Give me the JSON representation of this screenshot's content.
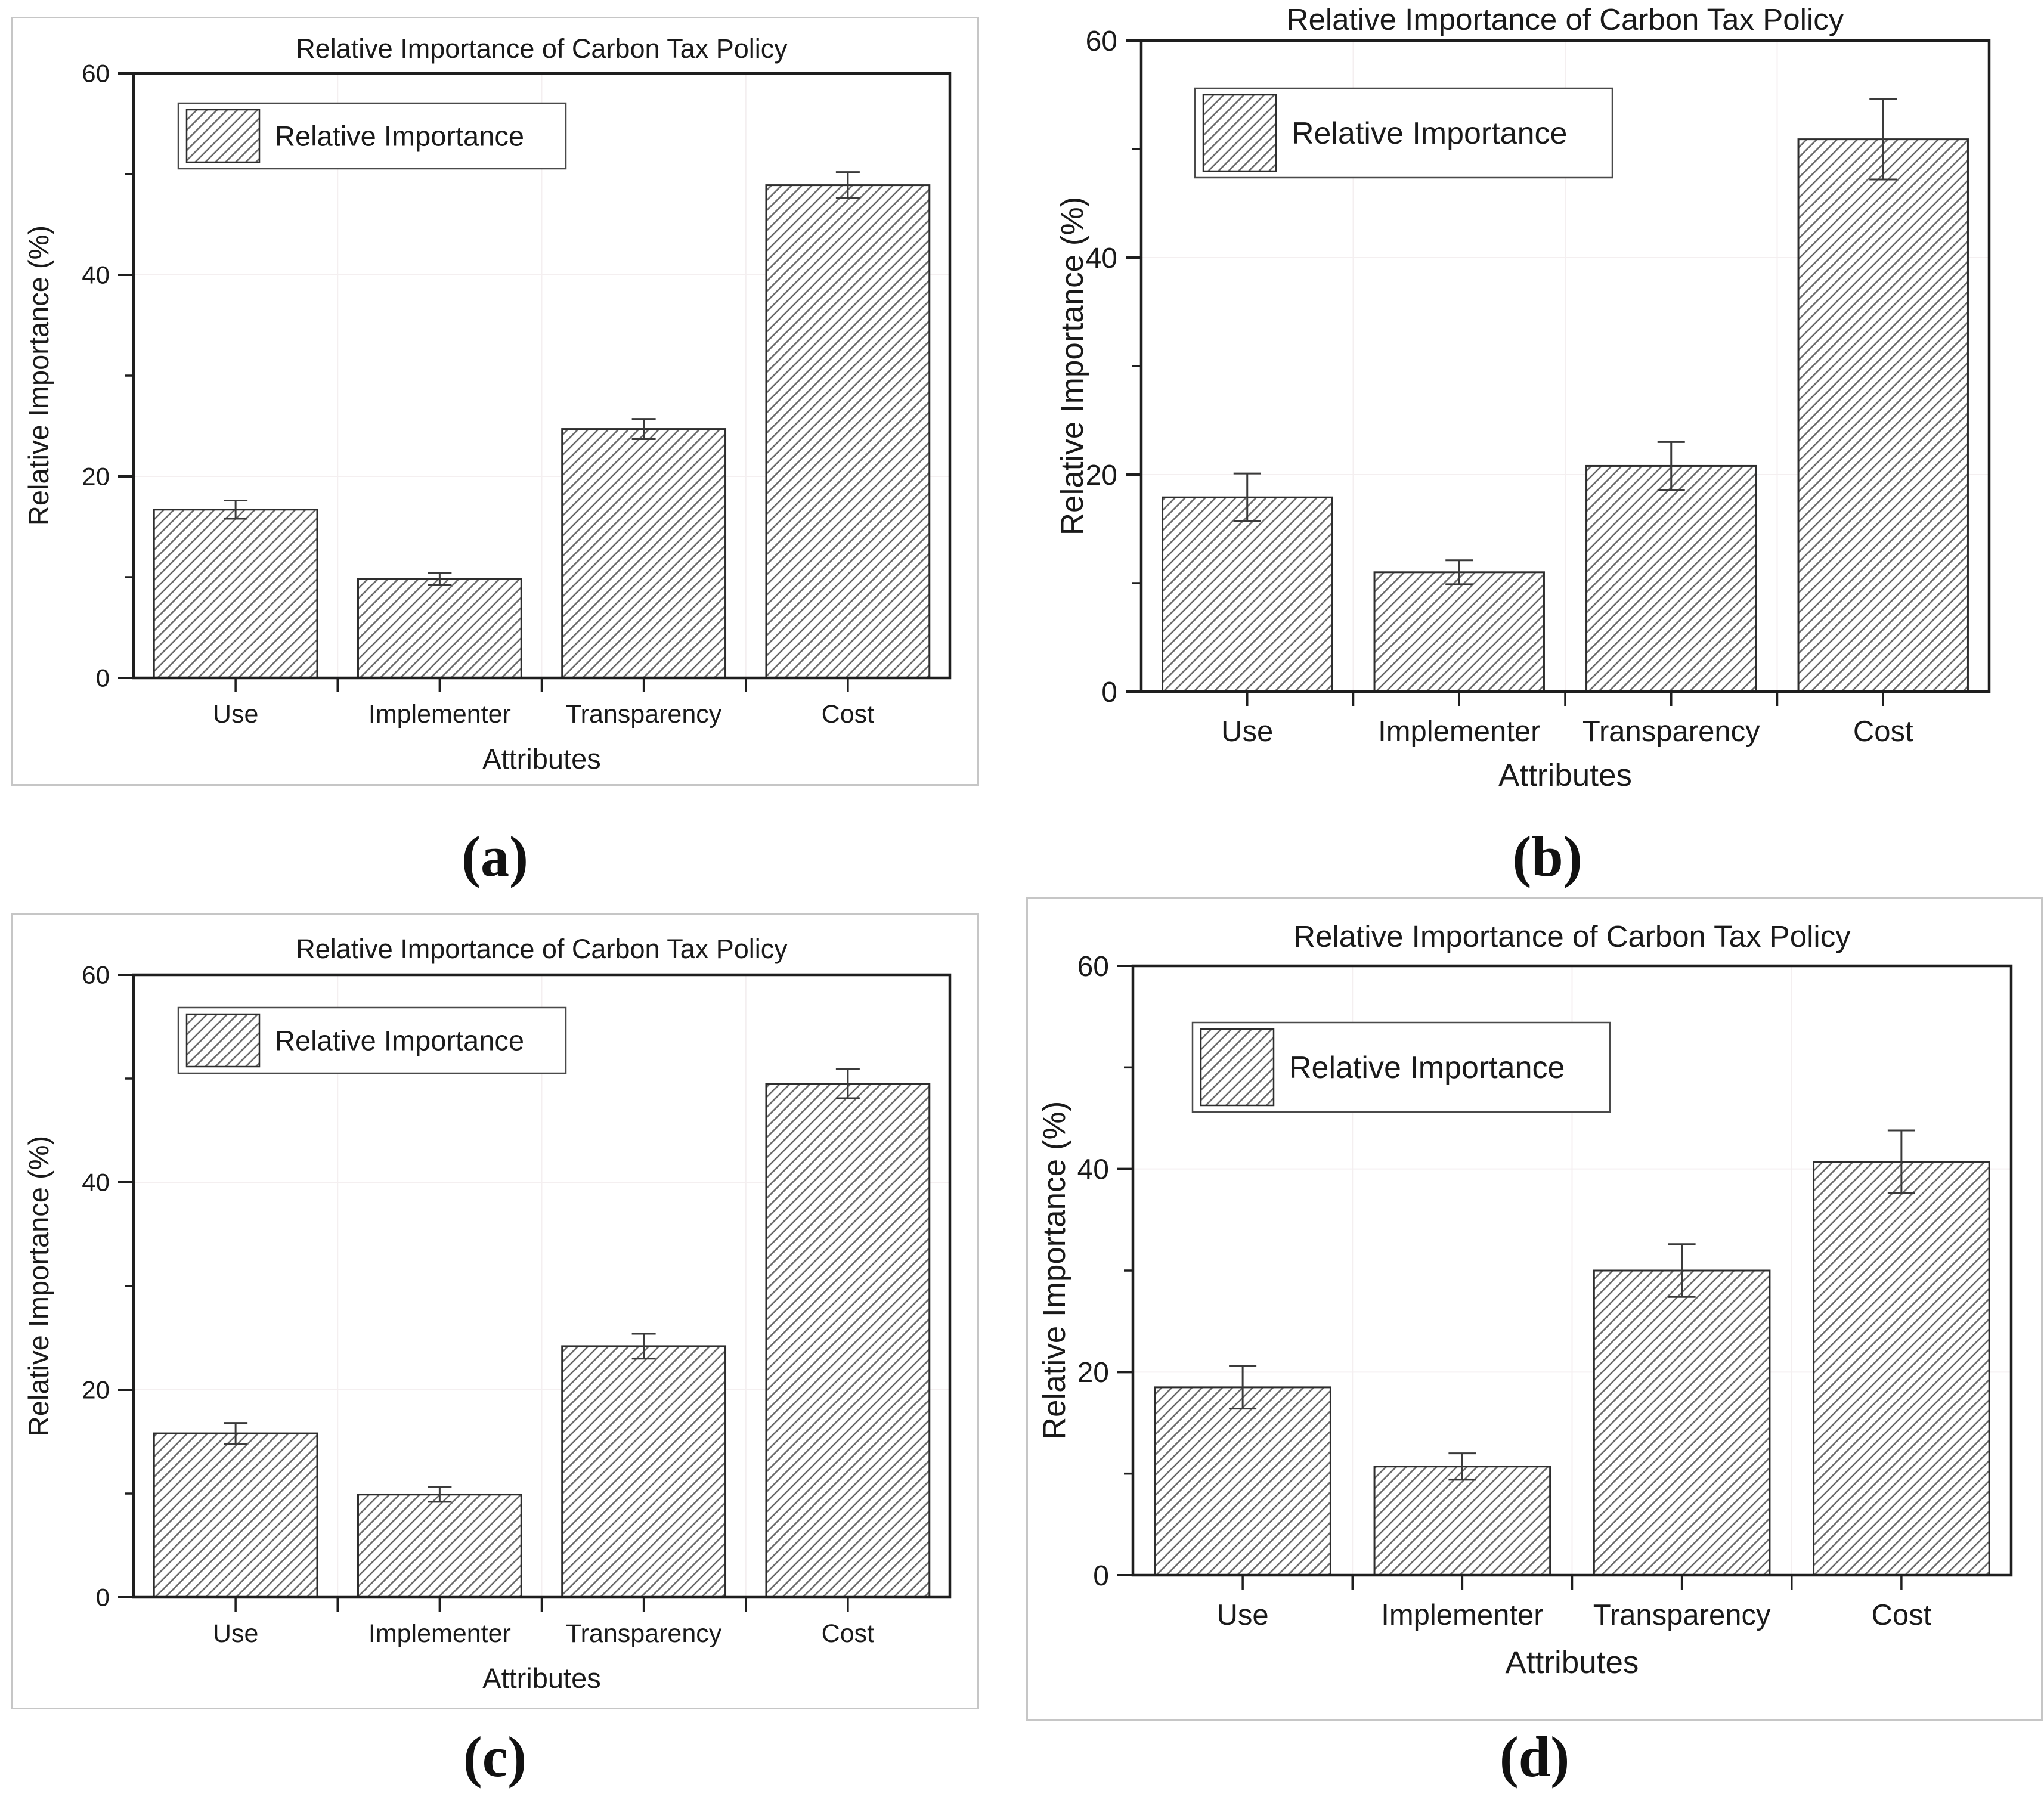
{
  "style": {
    "text_color": "#1a1a1a",
    "axis_color": "#1e1e1e",
    "hatch_color": "#666666",
    "edge_color": "#2d2d2d",
    "error_color": "#3a3a3a",
    "legend_border": "#4a4a4a",
    "panel_border": "#c6c6c6",
    "grid_color": "#f4eff0",
    "background": "#ffffff"
  },
  "chart_data": [
    {
      "id": "a",
      "panel_label": "(a)",
      "type": "bar",
      "title": "Relative Importance of Carbon Tax Policy",
      "xlabel": "Attributes",
      "ylabel": "Relative Importance (%)",
      "legend": {
        "label": "Relative Importance",
        "position": "top-left",
        "swatch": "diagonal-hatch"
      },
      "categories": [
        "Use",
        "Implementer",
        "Transparency",
        "Cost"
      ],
      "values": [
        16.7,
        9.8,
        24.7,
        48.9
      ],
      "errors": [
        0.9,
        0.6,
        1.0,
        1.3
      ],
      "ylim": [
        0,
        60
      ],
      "yticks_major": [
        0,
        20,
        40,
        60
      ],
      "yticks_minor": [
        10,
        30,
        50
      ],
      "grid": "faint"
    },
    {
      "id": "b",
      "panel_label": "(b)",
      "type": "bar",
      "title": "Relative Importance of Carbon Tax Policy",
      "xlabel": "Attributes",
      "ylabel": "Relative Importance (%)",
      "legend": {
        "label": "Relative Importance",
        "position": "top-left",
        "swatch": "diagonal-hatch"
      },
      "categories": [
        "Use",
        "Implementer",
        "Transparency",
        "Cost"
      ],
      "values": [
        17.9,
        11.0,
        20.8,
        50.9
      ],
      "errors": [
        2.2,
        1.1,
        2.2,
        3.7
      ],
      "ylim": [
        0,
        60
      ],
      "yticks_major": [
        0,
        20,
        40,
        60
      ],
      "yticks_minor": [
        10,
        30,
        50
      ],
      "grid": "faint"
    },
    {
      "id": "c",
      "panel_label": "(c)",
      "type": "bar",
      "title": "Relative Importance of Carbon Tax Policy",
      "xlabel": "Attributes",
      "ylabel": "Relative Importance (%)",
      "legend": {
        "label": "Relative Importance",
        "position": "top-left",
        "swatch": "diagonal-hatch"
      },
      "categories": [
        "Use",
        "Implementer",
        "Transparency",
        "Cost"
      ],
      "values": [
        15.8,
        9.9,
        24.2,
        49.5
      ],
      "errors": [
        1.0,
        0.7,
        1.2,
        1.4
      ],
      "ylim": [
        0,
        60
      ],
      "yticks_major": [
        0,
        20,
        40,
        60
      ],
      "yticks_minor": [
        10,
        30,
        50
      ],
      "grid": "faint"
    },
    {
      "id": "d",
      "panel_label": "(d)",
      "type": "bar",
      "title": "Relative Importance of Carbon Tax Policy",
      "xlabel": "Attributes",
      "ylabel": "Relative Importance (%)",
      "legend": {
        "label": "Relative Importance",
        "position": "top-left",
        "swatch": "diagonal-hatch"
      },
      "categories": [
        "Use",
        "Implementer",
        "Transparency",
        "Cost"
      ],
      "values": [
        18.5,
        10.7,
        30.0,
        40.7
      ],
      "errors": [
        2.1,
        1.3,
        2.6,
        3.1
      ],
      "ylim": [
        0,
        60
      ],
      "yticks_major": [
        0,
        20,
        40,
        60
      ],
      "yticks_minor": [
        10,
        30,
        50
      ],
      "grid": "faint"
    }
  ]
}
